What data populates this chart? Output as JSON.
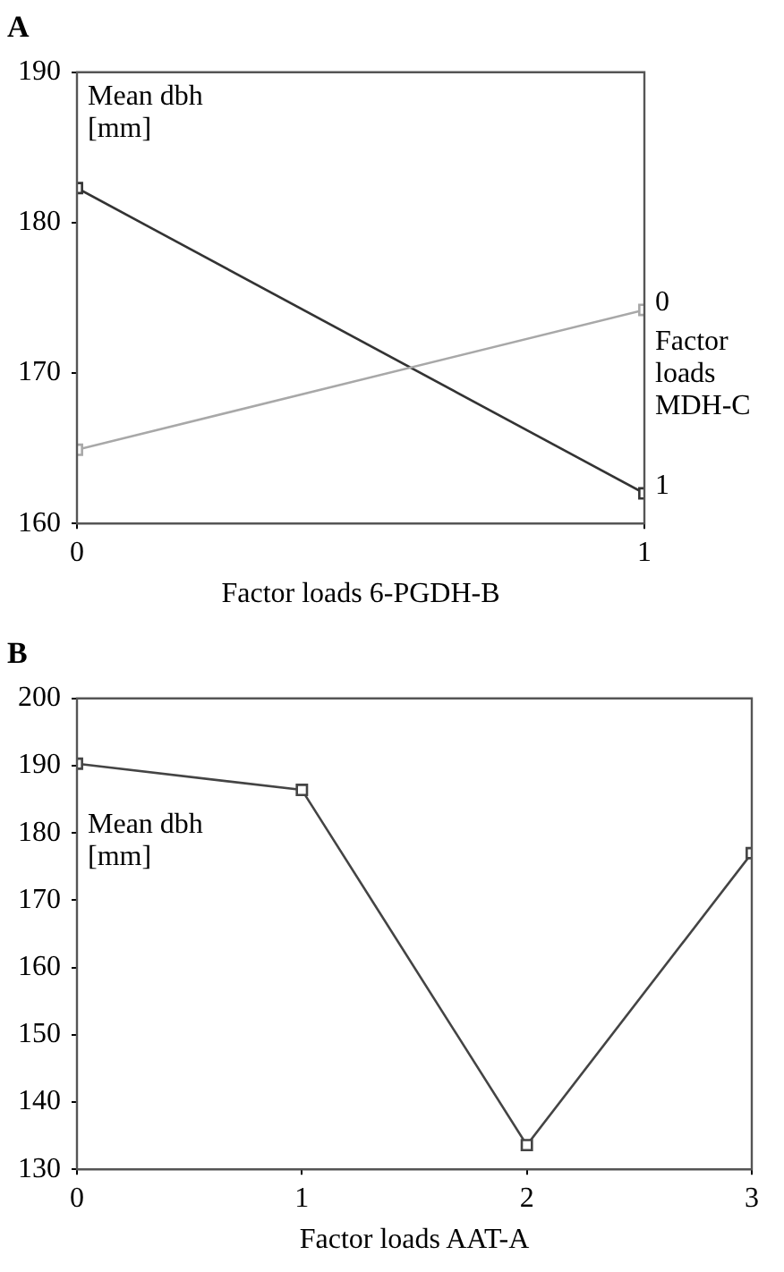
{
  "chart_data": [
    {
      "type": "line",
      "title": "A",
      "xlabel": "Factor loads 6-PGDH-B",
      "ylabel": "Mean dbh [mm]",
      "legend_title": "Factor loads MDH-C",
      "x": [
        0,
        1
      ],
      "xlim": [
        0,
        1
      ],
      "xticks": [
        0,
        1
      ],
      "ylim": [
        160,
        190
      ],
      "yticks": [
        160,
        170,
        180,
        190
      ],
      "grid": false,
      "legend": false,
      "marker": "square",
      "series": [
        {
          "name": "0",
          "color": "#a8a8a8",
          "values": [
            164.9,
            174.2
          ]
        },
        {
          "name": "1",
          "color": "#333333",
          "values": [
            182.3,
            162
          ]
        }
      ]
    },
    {
      "type": "line",
      "title": "B",
      "xlabel": "Factor loads AAT-A",
      "ylabel": "Mean dbh [mm]",
      "x": [
        0,
        1,
        2,
        3
      ],
      "xlim": [
        0,
        3
      ],
      "xticks": [
        0,
        1,
        2,
        3
      ],
      "ylim": [
        130,
        200
      ],
      "yticks": [
        130,
        140,
        150,
        160,
        170,
        180,
        190,
        200
      ],
      "grid": false,
      "legend": false,
      "marker": "square",
      "color": "#444444",
      "values": [
        190.3,
        186.4,
        133.6,
        177
      ]
    }
  ]
}
